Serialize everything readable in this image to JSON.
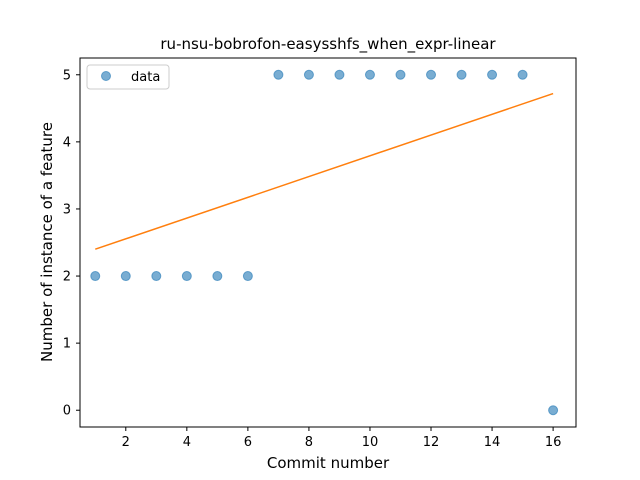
{
  "chart_data": {
    "type": "scatter",
    "title": "ru-nsu-bobrofon-easysshfs_when_expr-linear",
    "xlabel": "Commit number",
    "ylabel": "Number of instance of a feature",
    "xlim": [
      0.5,
      16.75
    ],
    "ylim": [
      -0.25,
      5.25
    ],
    "xticks": [
      2,
      4,
      6,
      8,
      10,
      12,
      14,
      16
    ],
    "yticks": [
      0,
      1,
      2,
      3,
      4,
      5
    ],
    "grid": false,
    "legend": {
      "position": "top-left",
      "entries": [
        "data"
      ]
    },
    "series": [
      {
        "name": "data",
        "kind": "scatter",
        "color": "#1f77b4",
        "x": [
          1,
          2,
          3,
          4,
          5,
          6,
          7,
          8,
          9,
          10,
          11,
          12,
          13,
          14,
          15,
          16
        ],
        "y": [
          2,
          2,
          2,
          2,
          2,
          2,
          5,
          5,
          5,
          5,
          5,
          5,
          5,
          5,
          5,
          0
        ]
      },
      {
        "kind": "line",
        "color": "#ff7f0e",
        "x": [
          1,
          16
        ],
        "y": [
          2.4,
          4.72
        ]
      }
    ]
  }
}
